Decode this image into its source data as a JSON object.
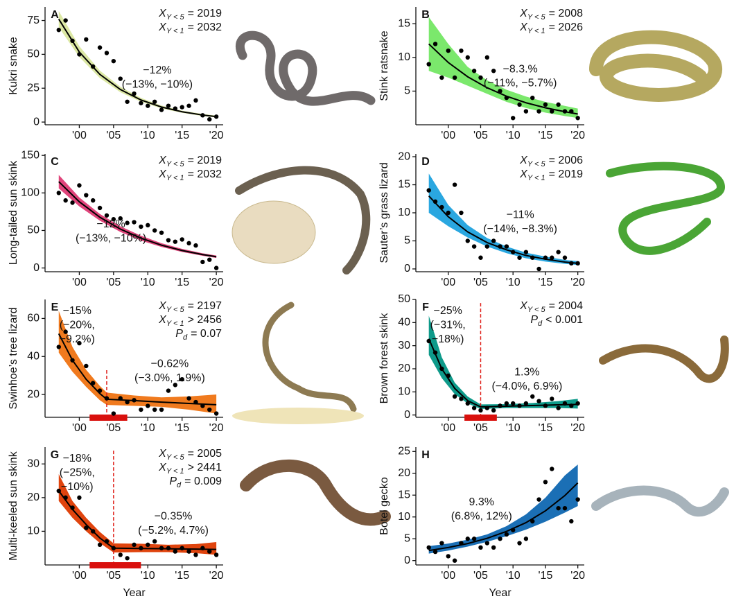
{
  "chart_data": [
    {
      "type": "scatter",
      "label": "A",
      "ylabel": "Kukri snake",
      "x": [
        1997,
        1998,
        1999,
        2000,
        2001,
        2002,
        2003,
        2004,
        2005,
        2006,
        2007,
        2008,
        2009,
        2010,
        2011,
        2012,
        2013,
        2014,
        2015,
        2016,
        2017,
        2018,
        2019,
        2020
      ],
      "values": [
        68,
        75,
        60,
        50,
        61,
        41,
        55,
        51,
        45,
        32,
        15,
        21,
        14,
        12,
        15,
        9,
        12,
        10,
        11,
        12,
        16,
        5,
        2,
        4
      ],
      "fit_x": [
        1997,
        2000,
        2003,
        2006,
        2009,
        2012,
        2015,
        2018,
        2020
      ],
      "fit": [
        76,
        51.7,
        35.2,
        24,
        16.3,
        11.1,
        7.6,
        5.2,
        4
      ],
      "band_lower": [
        70,
        48,
        32.5,
        22,
        15,
        10,
        6.8,
        4.4,
        3.3
      ],
      "band_upper": [
        82,
        56,
        38,
        26,
        17.8,
        12.2,
        8.4,
        6,
        4.8
      ],
      "color": "#dce8a4",
      "xlim": [
        1995,
        2021
      ],
      "xticks": [
        {
          "value": 2000,
          "label": "'00"
        },
        {
          "value": 2005,
          "label": "'05"
        },
        {
          "value": 2010,
          "label": "'10"
        },
        {
          "value": 2015,
          "label": "'15"
        },
        {
          "value": 2020,
          "label": "'20"
        }
      ],
      "ylim": [
        -2,
        85
      ],
      "yticks": [
        0,
        25,
        50,
        75
      ],
      "stats": [
        {
          "symbol": "X",
          "sub": "Y < 5",
          "text": "= 2019"
        },
        {
          "symbol": "X",
          "sub": "Y < 1",
          "text": "= 2032"
        }
      ],
      "notes": [
        "−12%",
        "(−13%, −10%)"
      ]
    },
    {
      "type": "scatter",
      "label": "B",
      "ylabel": "Stink ratsnake",
      "x": [
        1997,
        1998,
        1999,
        2000,
        2001,
        2002,
        2003,
        2004,
        2005,
        2006,
        2007,
        2008,
        2009,
        2010,
        2011,
        2012,
        2013,
        2014,
        2015,
        2016,
        2017,
        2018,
        2019,
        2020
      ],
      "values": [
        9,
        12,
        7,
        11,
        7,
        11,
        10,
        8,
        7,
        10,
        8,
        5,
        4,
        1,
        3,
        2,
        4,
        2,
        3,
        2,
        3,
        2,
        2,
        1
      ],
      "fit_x": [
        1997,
        2000,
        2003,
        2006,
        2009,
        2012,
        2015,
        2018,
        2020
      ],
      "fit": [
        12,
        9.25,
        7.13,
        5.5,
        4.24,
        3.27,
        2.52,
        1.94,
        1.6
      ],
      "band_lower": [
        8,
        7,
        5.8,
        4.6,
        3.4,
        2.5,
        1.8,
        1.3,
        1
      ],
      "band_upper": [
        16,
        12,
        8.6,
        6.6,
        5.2,
        4.2,
        3.4,
        2.8,
        2.4
      ],
      "color": "#7be86c",
      "xlim": [
        1995,
        2021
      ],
      "xticks": [
        {
          "value": 2000,
          "label": "'00"
        },
        {
          "value": 2005,
          "label": "'05"
        },
        {
          "value": 2010,
          "label": "'10"
        },
        {
          "value": 2015,
          "label": "'15"
        },
        {
          "value": 2020,
          "label": "'20"
        }
      ],
      "ylim": [
        0,
        17.5
      ],
      "yticks": [
        5,
        10,
        15
      ],
      "stats": [
        {
          "symbol": "X",
          "sub": "Y < 5",
          "text": "= 2008"
        },
        {
          "symbol": "X",
          "sub": "Y < 1",
          "text": "= 2026"
        }
      ],
      "notes": [
        "−8.3.%",
        "(−11%, −5.7%)"
      ]
    },
    {
      "type": "scatter",
      "label": "C",
      "ylabel": "Long-tailed sun skink",
      "x": [
        1997,
        1998,
        1999,
        2000,
        2001,
        2002,
        2003,
        2004,
        2005,
        2006,
        2007,
        2008,
        2009,
        2010,
        2011,
        2012,
        2013,
        2014,
        2015,
        2016,
        2017,
        2018,
        2019,
        2020
      ],
      "values": [
        100,
        90,
        87,
        110,
        97,
        90,
        80,
        70,
        65,
        66,
        60,
        61,
        55,
        57,
        50,
        47,
        37,
        35,
        38,
        33,
        30,
        8,
        11,
        0
      ],
      "fit_x": [
        1997,
        2000,
        2003,
        2006,
        2009,
        2012,
        2015,
        2018,
        2020
      ],
      "fit": [
        115,
        88.2,
        67.6,
        51.8,
        39.7,
        30.4,
        23.3,
        17.9,
        15
      ],
      "band_lower": [
        106,
        82,
        63,
        48,
        36.5,
        28,
        21.3,
        16.2,
        13.4
      ],
      "band_upper": [
        124,
        94,
        72,
        55.5,
        43,
        33,
        25.5,
        19.6,
        16.6
      ],
      "color": "#e0457b",
      "xlim": [
        1995,
        2021
      ],
      "xticks": [
        {
          "value": 2000,
          "label": "'00"
        },
        {
          "value": 2005,
          "label": "'05"
        },
        {
          "value": 2010,
          "label": "'10"
        },
        {
          "value": 2015,
          "label": "'15"
        },
        {
          "value": 2020,
          "label": "'20"
        }
      ],
      "ylim": [
        -5,
        152
      ],
      "yticks": [
        0,
        50,
        100,
        150
      ],
      "stats": [
        {
          "symbol": "X",
          "sub": "Y < 5",
          "text": "= 2019"
        },
        {
          "symbol": "X",
          "sub": "Y < 1",
          "text": "= 2032"
        }
      ],
      "notes": [
        "−12%",
        "(−13%, −10%)"
      ]
    },
    {
      "type": "scatter",
      "label": "D",
      "ylabel": "Sauter’s grass lizard",
      "x": [
        1997,
        1998,
        1999,
        2000,
        2001,
        2002,
        2003,
        2004,
        2005,
        2006,
        2007,
        2008,
        2009,
        2010,
        2011,
        2012,
        2013,
        2014,
        2015,
        2016,
        2017,
        2018,
        2019,
        2020
      ],
      "values": [
        14,
        12,
        11,
        10,
        15,
        10,
        5,
        4,
        2,
        4,
        5,
        4,
        4,
        3,
        2,
        3,
        2,
        0,
        2,
        2,
        3,
        2,
        1,
        1
      ],
      "fit_x": [
        1997,
        2000,
        2003,
        2006,
        2009,
        2012,
        2015,
        2018,
        2020
      ],
      "fit": [
        13,
        9.3,
        6.6,
        4.7,
        3.4,
        2.4,
        1.73,
        1.23,
        1
      ],
      "band_lower": [
        10,
        7.6,
        5.6,
        4,
        2.8,
        1.9,
        1.3,
        0.9,
        0.7
      ],
      "band_upper": [
        17,
        11.4,
        7.8,
        5.5,
        4,
        2.9,
        2.2,
        1.6,
        1.4
      ],
      "color": "#2aa7e0",
      "xlim": [
        1995,
        2021
      ],
      "xticks": [
        {
          "value": 2000,
          "label": "'00"
        },
        {
          "value": 2005,
          "label": "'05"
        },
        {
          "value": 2010,
          "label": "'10"
        },
        {
          "value": 2015,
          "label": "'15"
        },
        {
          "value": 2020,
          "label": "'20"
        }
      ],
      "ylim": [
        -0.5,
        20.5
      ],
      "yticks": [
        0,
        5,
        10,
        15,
        20
      ],
      "stats": [
        {
          "symbol": "X",
          "sub": "Y < 5",
          "text": "= 2006"
        },
        {
          "symbol": "X",
          "sub": "Y < 1",
          "text": "= 2019"
        }
      ],
      "notes": [
        "−11%",
        "(−14%, −8.3%)"
      ]
    },
    {
      "type": "scatter",
      "label": "E",
      "ylabel": "Swinhoe’s tree lizard",
      "x": [
        1997,
        1998,
        1999,
        2000,
        2001,
        2002,
        2003,
        2004,
        2005,
        2006,
        2007,
        2008,
        2009,
        2010,
        2011,
        2012,
        2013,
        2014,
        2015,
        2016,
        2017,
        2018,
        2019,
        2020
      ],
      "values": [
        45,
        53,
        38,
        47,
        35,
        26,
        22,
        18,
        10,
        18,
        16,
        17,
        12,
        14,
        12,
        12,
        22,
        25,
        28,
        18,
        16,
        14,
        12,
        10
      ],
      "fit_x": [
        1997,
        1999,
        2001,
        2003,
        2004,
        2008,
        2012,
        2016,
        2020
      ],
      "fit": [
        52,
        38,
        28,
        20.5,
        17.5,
        16.8,
        16,
        15.3,
        14.6
      ],
      "band_lower": [
        42,
        32,
        24,
        17,
        14.5,
        14,
        13.5,
        12,
        10
      ],
      "band_upper": [
        64,
        45,
        33,
        24.5,
        21,
        19.5,
        18.5,
        19,
        20
      ],
      "breakpoint": 2004,
      "breakpoint_ci": [
        2001.5,
        2007
      ],
      "color": "#f07a1e",
      "xlim": [
        1995,
        2021
      ],
      "xticks": [
        {
          "value": 2000,
          "label": "'00"
        },
        {
          "value": 2005,
          "label": "'05"
        },
        {
          "value": 2010,
          "label": "'10"
        },
        {
          "value": 2015,
          "label": "'15"
        },
        {
          "value": 2020,
          "label": "'20"
        }
      ],
      "ylim": [
        8,
        70
      ],
      "yticks": [
        20,
        40,
        60
      ],
      "stats": [
        {
          "symbol": "X",
          "sub": "Y < 5",
          "text": "= 2197"
        },
        {
          "symbol": "X",
          "sub": "Y < 1",
          "text": "> 2456"
        },
        {
          "symbol": "P",
          "sub": "d",
          "text": "= 0.07"
        }
      ],
      "notes": [
        "−15%",
        "(−20%,",
        "−9.2%)",
        "−0.62%",
        "(−3.0%, 1.9%)"
      ]
    },
    {
      "type": "scatter",
      "label": "F",
      "ylabel": "Brown forest skink",
      "x": [
        1997,
        1998,
        1999,
        2000,
        2001,
        2002,
        2003,
        2004,
        2005,
        2006,
        2007,
        2008,
        2009,
        2010,
        2011,
        2012,
        2013,
        2014,
        2015,
        2016,
        2017,
        2018,
        2019,
        2020
      ],
      "values": [
        32,
        27,
        20,
        17,
        8,
        7,
        5,
        3,
        2,
        3,
        2,
        4,
        5,
        5,
        4,
        5,
        8,
        6,
        4,
        7,
        3,
        5,
        4,
        5
      ],
      "fit_x": [
        1997,
        1999,
        2001,
        2003,
        2005,
        2009,
        2013,
        2017,
        2020
      ],
      "fit": [
        33,
        20,
        11.5,
        6.2,
        3.5,
        3.8,
        4.1,
        4.4,
        4.6
      ],
      "band_lower": [
        26,
        16,
        9,
        5,
        2.6,
        3,
        3,
        3,
        2.8
      ],
      "band_upper": [
        43,
        25,
        14,
        8,
        4.6,
        4.7,
        5.2,
        6,
        7
      ],
      "breakpoint": 2005,
      "breakpoint_ci": [
        2002.5,
        2007.5
      ],
      "color": "#0e9a8a",
      "xlim": [
        1995,
        2021
      ],
      "xticks": [
        {
          "value": 2000,
          "label": "'00"
        },
        {
          "value": 2005,
          "label": "'05"
        },
        {
          "value": 2010,
          "label": "'10"
        },
        {
          "value": 2015,
          "label": "'15"
        },
        {
          "value": 2020,
          "label": "'20"
        }
      ],
      "ylim": [
        -1,
        50
      ],
      "yticks": [
        0,
        10,
        20,
        30,
        40,
        50
      ],
      "stats": [
        {
          "symbol": "X",
          "sub": "Y < 5",
          "text": "= 2004"
        },
        {
          "symbol": "P",
          "sub": "d",
          "text": "< 0.001"
        }
      ],
      "notes": [
        "−25%",
        "(−31%,",
        "−18%)",
        "1.3%",
        "(−4.0%, 6.9%)"
      ]
    },
    {
      "type": "scatter",
      "label": "G",
      "ylabel": "Multi-keeled sun skink",
      "xlabel": "Year",
      "x": [
        1997,
        1998,
        1999,
        2000,
        2001,
        2002,
        2003,
        2004,
        2005,
        2006,
        2007,
        2008,
        2009,
        2010,
        2011,
        2012,
        2013,
        2014,
        2015,
        2016,
        2017,
        2018,
        2019,
        2020
      ],
      "values": [
        22,
        20,
        17,
        20,
        11,
        10,
        6,
        7,
        5,
        3,
        2,
        6,
        5,
        6,
        7,
        5,
        5,
        4,
        5,
        4,
        3,
        5,
        4,
        3
      ],
      "fit_x": [
        1997,
        1999,
        2001,
        2003,
        2005,
        2009,
        2013,
        2017,
        2020
      ],
      "fit": [
        22,
        16.5,
        12,
        8,
        5,
        4.9,
        4.8,
        4.7,
        4.6
      ],
      "band_lower": [
        19,
        14,
        10,
        6.5,
        3.7,
        3.8,
        3.8,
        3.5,
        3
      ],
      "band_upper": [
        27,
        19,
        14,
        9.8,
        6.4,
        6.3,
        6,
        6.2,
        6.8
      ],
      "breakpoint": 2005,
      "breakpoint_ci": [
        2001.5,
        2009
      ],
      "color": "#e0440e",
      "xlim": [
        1995,
        2021
      ],
      "xticks": [
        {
          "value": 2000,
          "label": "'00"
        },
        {
          "value": 2005,
          "label": "'05"
        },
        {
          "value": 2010,
          "label": "'10"
        },
        {
          "value": 2015,
          "label": "'15"
        },
        {
          "value": 2020,
          "label": "'20"
        }
      ],
      "ylim": [
        0,
        35
      ],
      "yticks": [
        10,
        20,
        30
      ],
      "stats": [
        {
          "symbol": "X",
          "sub": "Y < 5",
          "text": "= 2005"
        },
        {
          "symbol": "X",
          "sub": "Y < 1",
          "text": "> 2441"
        },
        {
          "symbol": "P",
          "sub": "d",
          "text": "= 0.009"
        }
      ],
      "notes": [
        "−18%",
        "(−25%,",
        "−10%)",
        "−0.35%",
        "(−5.2%, 4.7%)"
      ]
    },
    {
      "type": "scatter",
      "label": "H",
      "ylabel": "Botel gecko",
      "xlabel": "Year",
      "x": [
        1997,
        1998,
        1999,
        2000,
        2001,
        2002,
        2003,
        2004,
        2005,
        2006,
        2007,
        2008,
        2009,
        2010,
        2011,
        2012,
        2013,
        2014,
        2015,
        2016,
        2017,
        2018,
        2019,
        2020
      ],
      "values": [
        3,
        2,
        4,
        1,
        0,
        4,
        5,
        5,
        3,
        4,
        3,
        5,
        6,
        7,
        4,
        5,
        9,
        14,
        18,
        21,
        12,
        12,
        9,
        14
      ],
      "fit_x": [
        1997,
        2000,
        2003,
        2006,
        2009,
        2012,
        2015,
        2018,
        2020
      ],
      "fit": [
        2.3,
        3,
        3.9,
        5.1,
        6.7,
        8.7,
        11.4,
        14.9,
        17.8
      ],
      "band_lower": [
        1.6,
        2.3,
        3.2,
        4.3,
        5.6,
        7.1,
        8.9,
        11,
        12.5
      ],
      "band_upper": [
        3.3,
        3.9,
        4.8,
        6,
        7.9,
        10.6,
        14.4,
        19.5,
        22
      ],
      "color": "#1b6fb5",
      "xlim": [
        1995,
        2021
      ],
      "xticks": [
        {
          "value": 2000,
          "label": "'00"
        },
        {
          "value": 2005,
          "label": "'05"
        },
        {
          "value": 2010,
          "label": "'10"
        },
        {
          "value": 2015,
          "label": "'15"
        },
        {
          "value": 2020,
          "label": "'20"
        }
      ],
      "ylim": [
        -1,
        26
      ],
      "yticks": [
        0,
        5,
        10,
        15,
        20,
        25
      ],
      "stats": [],
      "notes": [
        "9.3%",
        "(6.8%, 12%)"
      ]
    }
  ]
}
